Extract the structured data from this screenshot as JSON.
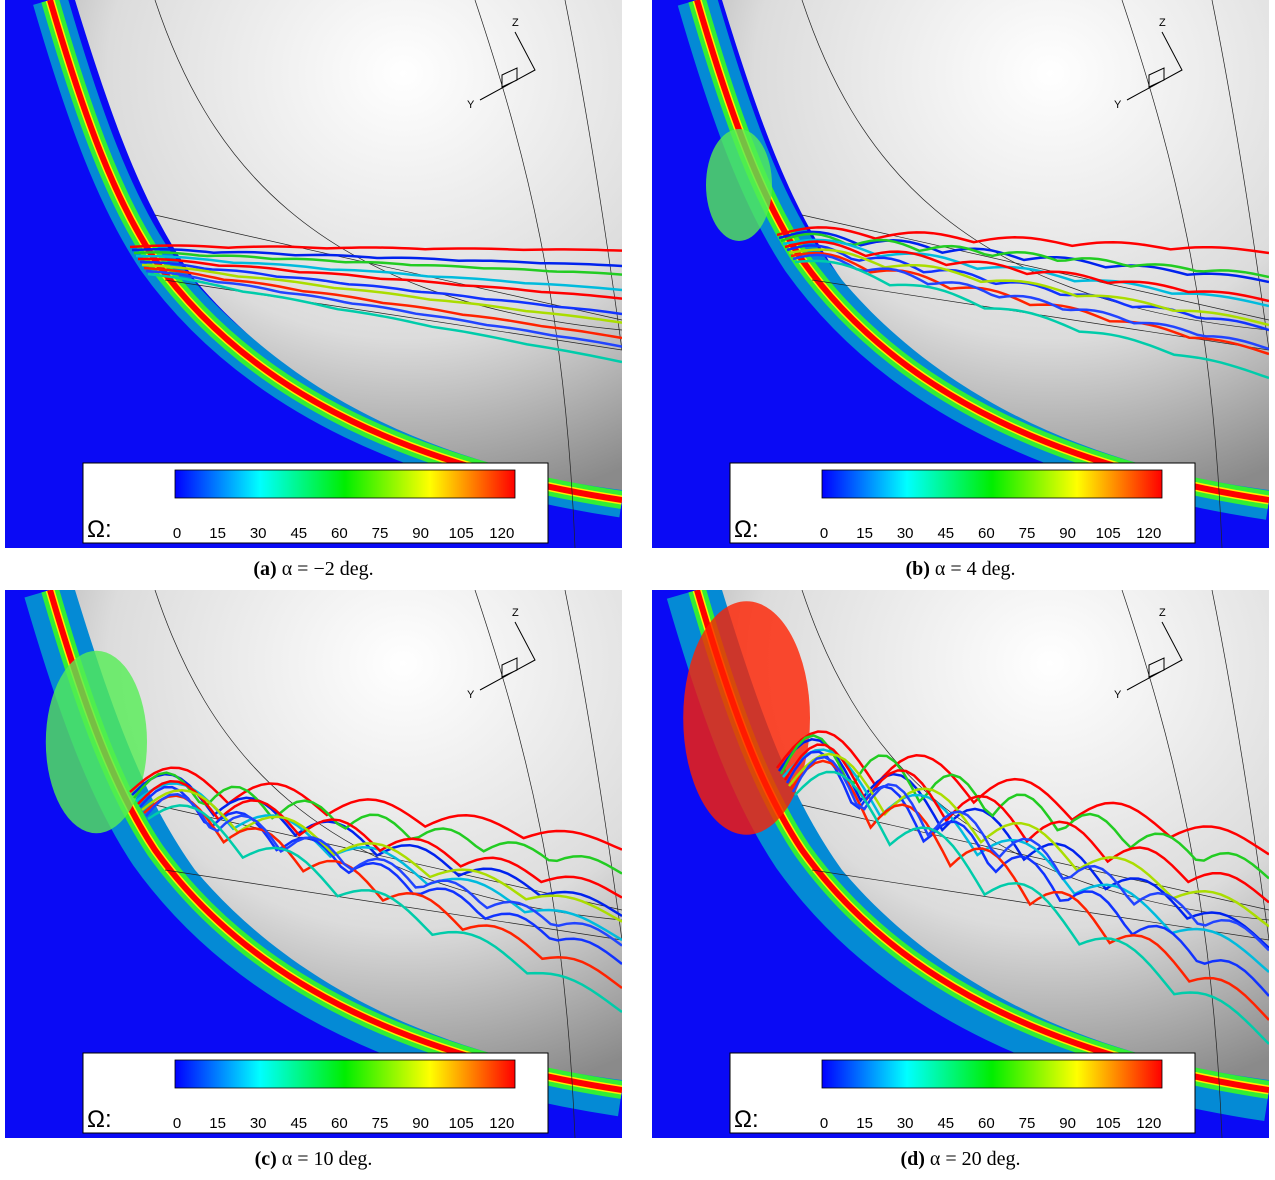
{
  "panels": [
    {
      "label": "(a)",
      "caption": "α = −2 deg.",
      "axes": {
        "z": "Z",
        "y": "Y"
      },
      "colorbar": {
        "symbol": "Ω:",
        "ticks": [
          0,
          15,
          30,
          45,
          60,
          75,
          90,
          105,
          120
        ]
      }
    },
    {
      "label": "(b)",
      "caption": "α = 4 deg.",
      "axes": {
        "z": "Z",
        "y": "Y"
      },
      "colorbar": {
        "symbol": "Ω:",
        "ticks": [
          0,
          15,
          30,
          45,
          60,
          75,
          90,
          105,
          120
        ]
      }
    },
    {
      "label": "(c)",
      "caption": "α = 10 deg.",
      "axes": {
        "z": "Z",
        "y": "Y"
      },
      "colorbar": {
        "symbol": "Ω:",
        "ticks": [
          0,
          15,
          30,
          45,
          60,
          75,
          90,
          105,
          120
        ]
      }
    },
    {
      "label": "(d)",
      "caption": "α = 20 deg.",
      "axes": {
        "z": "Z",
        "y": "Y"
      },
      "colorbar": {
        "symbol": "Ω:",
        "ticks": [
          0,
          15,
          30,
          45,
          60,
          75,
          90,
          105,
          120
        ]
      }
    }
  ]
}
